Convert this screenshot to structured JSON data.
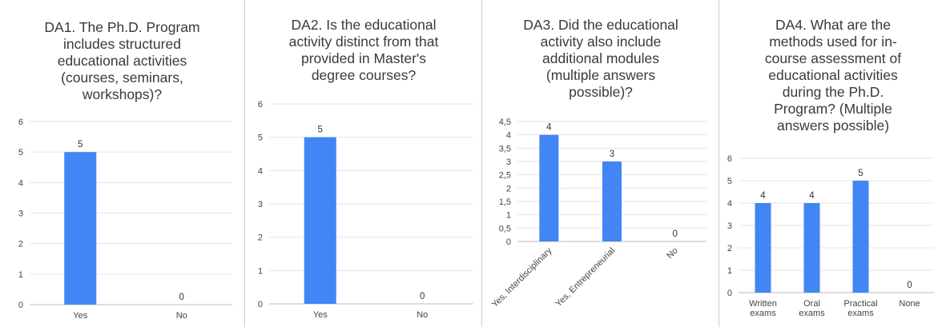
{
  "chart_data": [
    {
      "type": "bar",
      "title_lines": [
        "DA1. The Ph.D. Program",
        "includes structured",
        "educational activities",
        "(courses, seminars,",
        "workshops)?"
      ],
      "categories": [
        "Yes",
        "No"
      ],
      "values": [
        5,
        0
      ],
      "data_labels": [
        "5",
        "0"
      ],
      "y_ticks": [
        "0",
        "1",
        "2",
        "3",
        "4",
        "5",
        "6"
      ],
      "ylim": [
        0,
        6
      ],
      "grid": true,
      "bar_color": "#4285f4"
    },
    {
      "type": "bar",
      "title_lines": [
        "DA2. Is the educational",
        "activity distinct from that",
        "provided in Master's",
        "degree courses?"
      ],
      "categories": [
        "Yes",
        "No"
      ],
      "values": [
        5,
        0
      ],
      "data_labels": [
        "5",
        "0"
      ],
      "y_ticks": [
        "0",
        "1",
        "2",
        "3",
        "4",
        "5",
        "6"
      ],
      "ylim": [
        0,
        6
      ],
      "grid": true,
      "bar_color": "#4285f4"
    },
    {
      "type": "bar",
      "title_lines": [
        "DA3. Did the educational",
        "activity also include",
        "additional modules",
        "(multiple answers",
        "possible)?"
      ],
      "categories": [
        "Yes, Interdisciplinary",
        "Yes, Entrepreneurial",
        "No"
      ],
      "values": [
        4,
        3,
        0
      ],
      "data_labels": [
        "4",
        "3",
        "0"
      ],
      "y_ticks": [
        "0",
        "0,5",
        "1",
        "1,5",
        "2",
        "2,5",
        "3",
        "3,5",
        "4",
        "4,5"
      ],
      "ylim": [
        0,
        4.5
      ],
      "grid": true,
      "bar_color": "#4285f4"
    },
    {
      "type": "bar",
      "title_lines": [
        "DA4. What are the",
        "methods used for in-",
        "course assessment of",
        "educational activities",
        "during the Ph.D.",
        "Program? (Multiple",
        "answers possible)"
      ],
      "categories": [
        [
          "Written",
          "exams"
        ],
        [
          "Oral",
          "exams"
        ],
        [
          "Practical",
          "exams"
        ],
        [
          "None"
        ]
      ],
      "values": [
        4,
        4,
        5,
        0
      ],
      "data_labels": [
        "4",
        "4",
        "5",
        "0"
      ],
      "y_ticks": [
        "0",
        "1",
        "2",
        "3",
        "4",
        "5",
        "6"
      ],
      "ylim": [
        0,
        6
      ],
      "grid": true,
      "bar_color": "#4285f4"
    }
  ]
}
